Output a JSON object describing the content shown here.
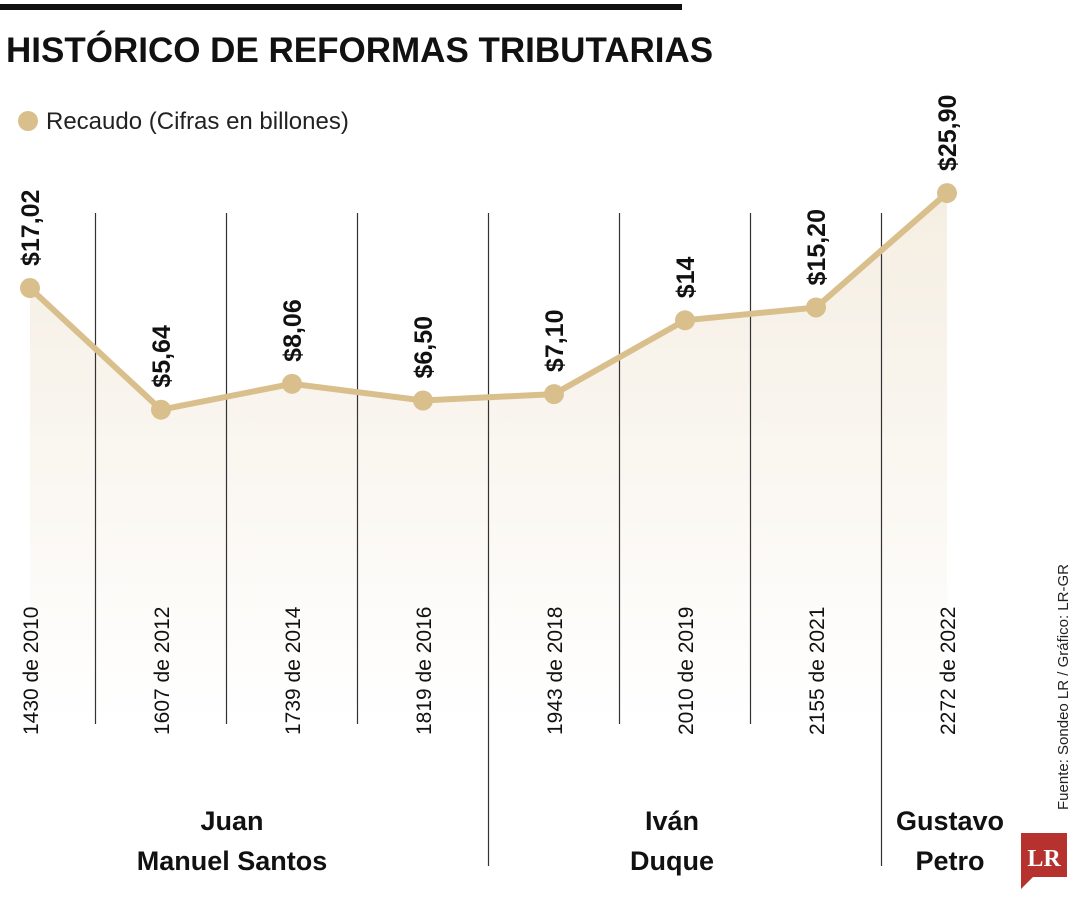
{
  "chart_data": {
    "type": "line",
    "title": "HISTÓRICO DE REFORMAS TRIBUTARIAS",
    "categories": [
      "1430 de 2010",
      "1607 de 2012",
      "1739 de 2014",
      "1819 de 2016",
      "1943 de 2018",
      "2010 de 2019",
      "2155 de 2021",
      "2272 de 2022"
    ],
    "series": [
      {
        "name": "Recaudo (Cifras en billones)",
        "color": "#d9bf8c",
        "values": [
          17.02,
          5.64,
          8.06,
          6.5,
          7.1,
          14,
          15.2,
          25.9
        ],
        "value_labels": [
          "$17,02",
          "$5,64",
          "$8,06",
          "$6,50",
          "$7,10",
          "$14",
          "$15,20",
          "$25,90"
        ]
      }
    ],
    "ylim": [
      0,
      26
    ],
    "groups": [
      [
        "Juan",
        "Manuel Santos"
      ],
      [
        "Iván",
        "Duque"
      ],
      [
        "Gustavo",
        "Petro"
      ]
    ],
    "source": "Fuente: Sondeo LR / Gráfico: LR-GR",
    "logo": "LR"
  }
}
